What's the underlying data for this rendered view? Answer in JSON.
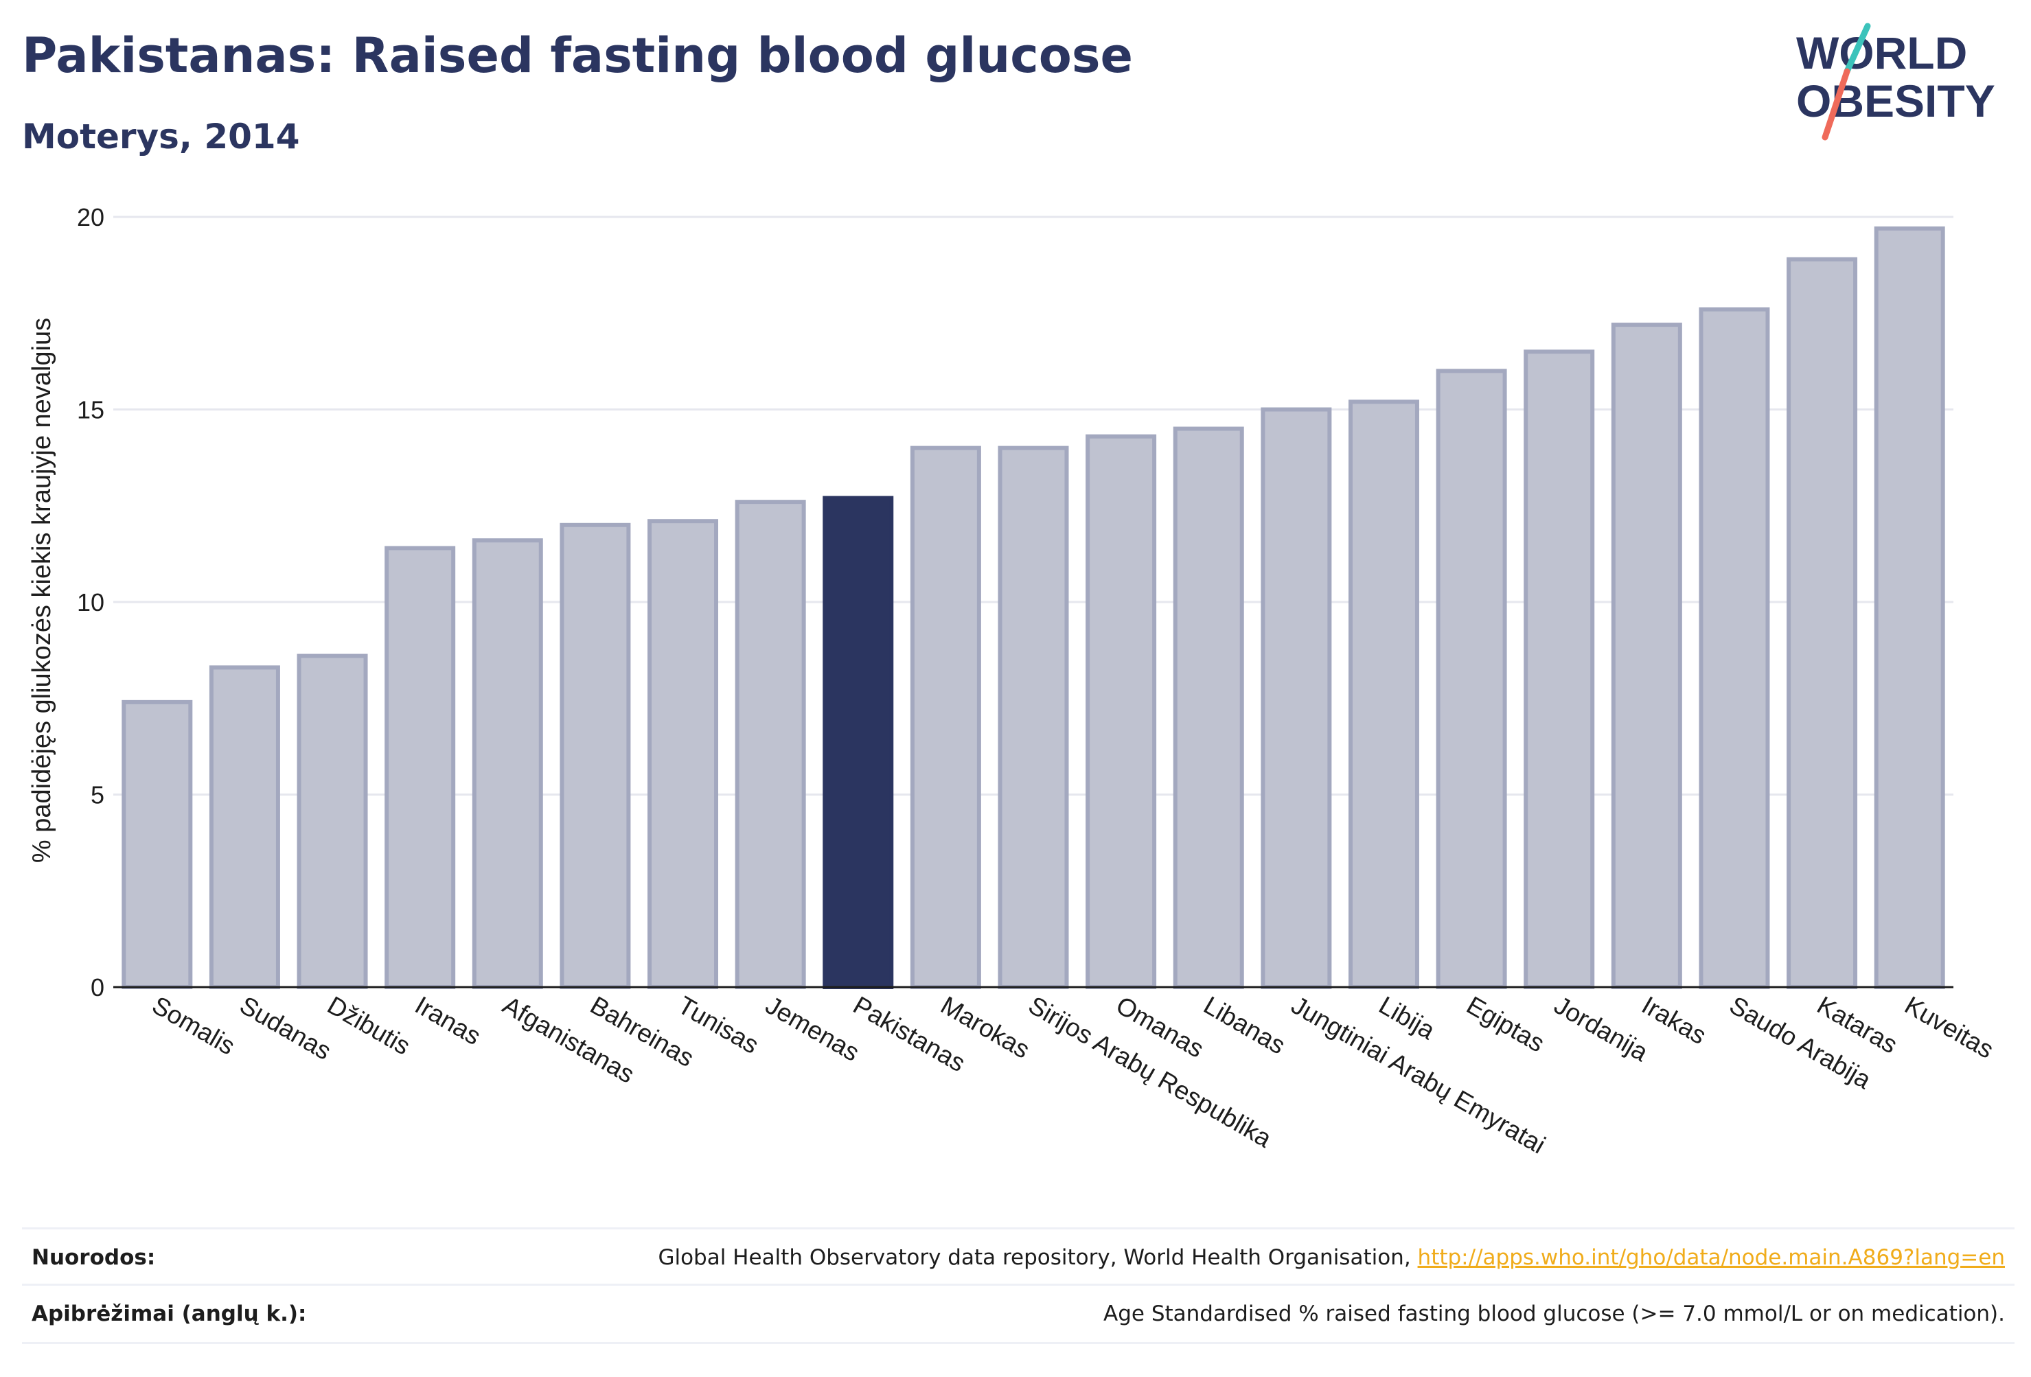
{
  "header": {
    "title": "Pakistanas: Raised fasting blood glucose",
    "subtitle": "Moterys, 2014"
  },
  "logo": {
    "line1": "WORLD",
    "line2": "OBESITY"
  },
  "colors": {
    "highlight": "#2b3560",
    "bar_fill": "#bfc2d0",
    "bar_stroke": "#a3a8bf",
    "grid": "#e6e7ee",
    "link": "#f0ac1b",
    "logo_teal": "#3cc3bb",
    "logo_coral": "#ef6a5a"
  },
  "chart_data": {
    "type": "bar",
    "title": "Pakistanas: Raised fasting blood glucose",
    "subtitle": "Moterys, 2014",
    "xlabel": "",
    "ylabel": "% padidėjęs gliukozės kiekis kraujyje nevalgius",
    "ylim": [
      0,
      20
    ],
    "yticks": [
      0,
      5,
      10,
      15,
      20
    ],
    "grid": true,
    "highlight_category": "Pakistanas",
    "categories": [
      "Somalis",
      "Sudanas",
      "Džibutis",
      "Iranas",
      "Afganistanas",
      "Bahreinas",
      "Tunisas",
      "Jemenas",
      "Pakistanas",
      "Marokas",
      "Sirijos Arabų Respublika",
      "Omanas",
      "Libanas",
      "Jungtiniai Arabų Emyratai",
      "Libija",
      "Egiptas",
      "Jordanija",
      "Irakas",
      "Saudo Arabija",
      "Kataras",
      "Kuveitas"
    ],
    "values": [
      7.4,
      8.3,
      8.6,
      11.4,
      11.6,
      12.0,
      12.1,
      12.6,
      12.7,
      14.0,
      14.0,
      14.3,
      14.5,
      15.0,
      15.2,
      16.0,
      16.5,
      17.2,
      17.6,
      18.9,
      19.7
    ]
  },
  "footer": {
    "sources_label": "Nuorodos:",
    "sources_text": "Global Health Observatory data repository, World Health Organisation, ",
    "sources_link": "http://apps.who.int/gho/data/node.main.A869?lang=en",
    "definitions_label": "Apibrėžimai (anglų k.):",
    "definitions_text": "Age Standardised % raised fasting blood glucose (>= 7.0 mmol/L or on medication)."
  }
}
